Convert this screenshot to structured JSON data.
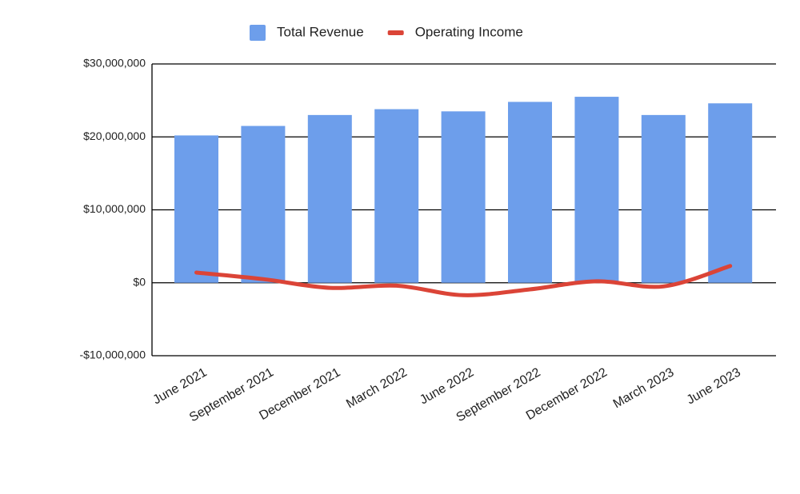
{
  "chart_data": {
    "type": "combo",
    "categories": [
      "June 2021",
      "September 2021",
      "December 2021",
      "March 2022",
      "June 2022",
      "September 2022",
      "December 2022",
      "March 2023",
      "June 2023"
    ],
    "series": [
      {
        "name": "Total Revenue",
        "type": "bar",
        "color": "#6d9eeb",
        "values": [
          20200000,
          21500000,
          23000000,
          23800000,
          23500000,
          24800000,
          25500000,
          23000000,
          24600000
        ]
      },
      {
        "name": "Operating Income",
        "type": "line",
        "color": "#db4437",
        "values": [
          1400000,
          500000,
          -700000,
          -400000,
          -1700000,
          -900000,
          200000,
          -500000,
          2300000
        ]
      }
    ],
    "ylim": [
      -10000000,
      30000000
    ],
    "yticks": [
      {
        "value": -10000000,
        "label": "-$10,000,000"
      },
      {
        "value": 0,
        "label": "$0"
      },
      {
        "value": 10000000,
        "label": "$10,000,000"
      },
      {
        "value": 20000000,
        "label": "$20,000,000"
      },
      {
        "value": 30000000,
        "label": "$30,000,000"
      }
    ],
    "grid": true,
    "legend": "top"
  }
}
